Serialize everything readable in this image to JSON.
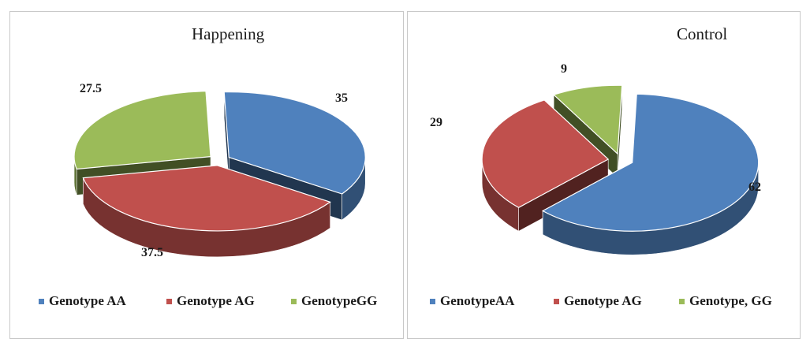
{
  "colors": {
    "genotype_aa": "#4F81BD",
    "genotype_ag": "#C0504D",
    "genotype_gg": "#9BBB59"
  },
  "chart_data": [
    {
      "type": "pie",
      "style": "3d-exploded",
      "title": "Happening",
      "categories": [
        "Genotype AA",
        "Genotype AG",
        "GenotypeGG"
      ],
      "values": [
        35,
        37.5,
        27.5
      ],
      "data_labels": [
        "35",
        "37.5",
        "27.5"
      ],
      "legend": {
        "position": "bottom",
        "entries": [
          "Genotype AA",
          "Genotype AG",
          "GenotypeGG"
        ]
      }
    },
    {
      "type": "pie",
      "style": "3d-exploded",
      "title": "Control",
      "categories": [
        "GenotypeAA",
        "Genotype AG",
        "Genotype, GG"
      ],
      "values": [
        62,
        29,
        9
      ],
      "data_labels": [
        "62",
        "29",
        "9"
      ],
      "legend": {
        "position": "bottom",
        "entries": [
          "GenotypeAA",
          "Genotype AG",
          "Genotype, GG"
        ]
      }
    }
  ]
}
